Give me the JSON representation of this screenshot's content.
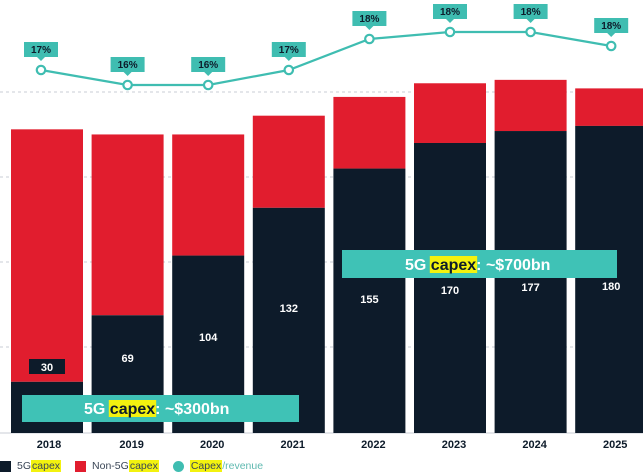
{
  "chart_data": {
    "type": "bar",
    "stacked": true,
    "categories": [
      "2018",
      "2019",
      "2020",
      "2021",
      "2022",
      "2023",
      "2024",
      "2025"
    ],
    "series": [
      {
        "name": "5G capex",
        "color": "#0d1b2a",
        "values": [
          30,
          69,
          104,
          132,
          155,
          170,
          177,
          180
        ]
      },
      {
        "name": "Non-5G capex",
        "color": "#e11d2e",
        "values": [
          148,
          106,
          71,
          54,
          42,
          35,
          30,
          22
        ]
      }
    ],
    "line": {
      "name": "Capex/revenue",
      "color": "#3fbdb1",
      "values": [
        17,
        16,
        16,
        17,
        18,
        18,
        18,
        18
      ],
      "labels": [
        "17%",
        "16%",
        "16%",
        "17%",
        "18%",
        "18%",
        "18%",
        "18%"
      ]
    },
    "bar_labels": [
      "30",
      "69",
      "104",
      "132",
      "155",
      "170",
      "177",
      "180"
    ],
    "grid": true,
    "callouts": [
      {
        "prefix": "5G ",
        "highlight": "capex",
        "suffix": ": ~$300bn"
      },
      {
        "prefix": "5G ",
        "highlight": "capex",
        "suffix": ": ~$700bn"
      }
    ],
    "legend_position": "bottom-left"
  },
  "legend": {
    "item1": {
      "label": "5G ",
      "highlight": "capex"
    },
    "item2": {
      "label": "Non-5G ",
      "highlight": "capex"
    },
    "item3": {
      "highlight": "Capex",
      "rest": "/revenue"
    }
  }
}
